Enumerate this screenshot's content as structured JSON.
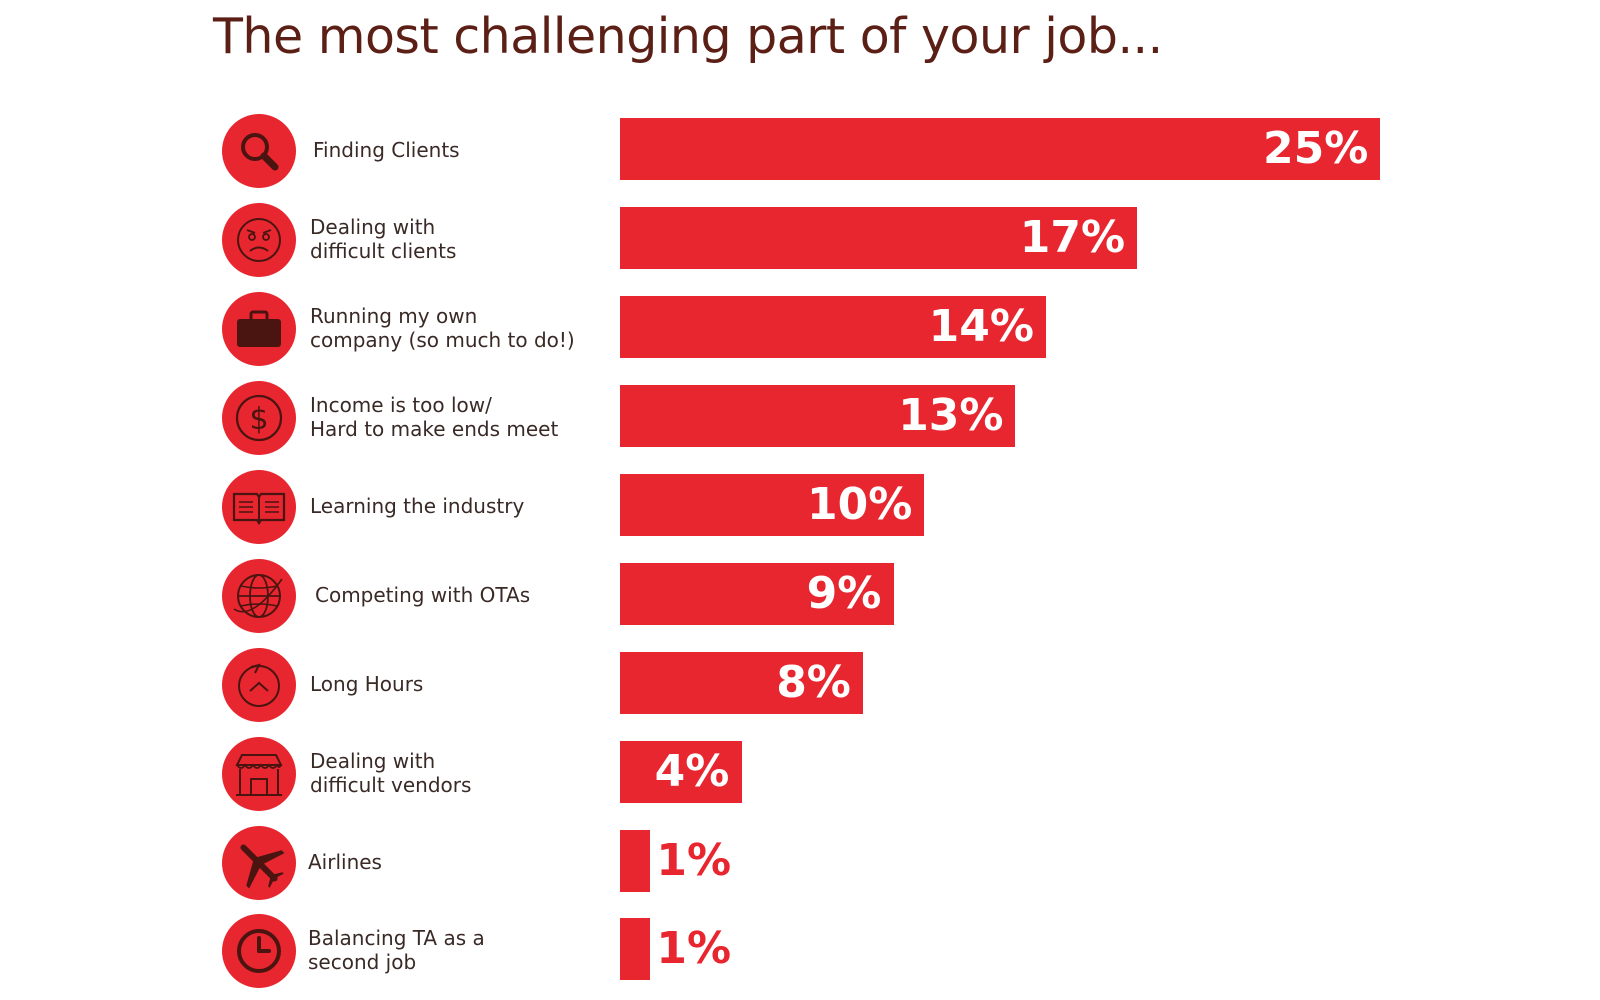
{
  "title": "The most challenging part of your job...",
  "colors": {
    "bar": "#e8262f",
    "title": "#5b1f16",
    "icon_stroke": "#4a1410"
  },
  "chart_data": {
    "type": "bar",
    "orientation": "horizontal",
    "title": "The most challenging part of your job...",
    "categories": [
      "Finding Clients",
      "Dealing with\ndifficult clients",
      "Running my own\ncompany (so much to do!)",
      "Income is too low/\nHard to make ends meet",
      "Learning the industry",
      "Competing with OTAs",
      "Long Hours",
      "Dealing with\ndifficult vendors",
      "Airlines",
      "Balancing TA as a\nsecond job"
    ],
    "icons": [
      "magnifier-icon",
      "angry-face-icon",
      "briefcase-icon",
      "dollar-icon",
      "book-icon",
      "globe-icon",
      "cycle-icon",
      "storefront-icon",
      "airplane-icon",
      "clock-icon"
    ],
    "values": [
      25,
      17,
      14,
      13,
      10,
      9,
      8,
      4,
      1,
      1
    ],
    "value_labels": [
      "25%",
      "17%",
      "14%",
      "13%",
      "10%",
      "9%",
      "8%",
      "4%",
      "1%",
      "1%"
    ],
    "xlim": [
      0,
      25
    ],
    "grid": false,
    "legend": "none"
  }
}
